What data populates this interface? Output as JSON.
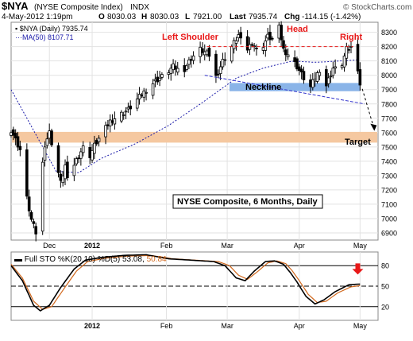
{
  "header": {
    "symbol": "$NYA",
    "name": "(NYSE Composite Index)",
    "exchange": "INDX",
    "source": "© StockCharts.com",
    "date_time": "4-May-2012 1:19pm",
    "open_label": "O",
    "open": "8030.03",
    "high_label": "H",
    "high": "8030.03",
    "low_label": "L",
    "low": "7921.00",
    "last_label": "Last",
    "last": "7935.74",
    "chg_label": "Chg",
    "chg": "-114.15 (-1.42%)"
  },
  "legend": {
    "price": "$NYA (Daily) 7935.74",
    "ma": "MA(50) 8107.71"
  },
  "annotations": {
    "left_shoulder": "Left Shoulder",
    "head": "Head",
    "right": "Right",
    "neckline": "Neckline",
    "target": "Target",
    "caption": "NYSE Composite, 6 Months, Daily"
  },
  "indicator": {
    "label": "Full STO %K(20,10) %D(5)",
    "k_value": "53.08,",
    "d_value": "50.84"
  },
  "colors": {
    "up_candle": "#ffffff",
    "down_candle": "#000000",
    "ma_line": "#1a1aa8",
    "annotation_red": "#e81818",
    "neckline_band": "#8ab4e8",
    "target_band": "#f5c8a0",
    "sto_k": "#000000",
    "sto_d": "#d2691e"
  },
  "chart_data": [
    {
      "type": "candlestick",
      "y_ticks": [
        6900,
        7000,
        7100,
        7200,
        7300,
        7400,
        7500,
        7600,
        7700,
        7800,
        7900,
        8000,
        8100,
        8200,
        8300
      ],
      "ylim": [
        6850,
        8370
      ],
      "x_labels": [
        "Dec",
        "2012",
        "Feb",
        "Mar",
        "Apr",
        "May"
      ],
      "x_label_days": [
        17,
        36,
        69,
        96,
        128,
        155
      ],
      "xlim": [
        0,
        163
      ],
      "last": 7935.74,
      "ma50_last": 8107.71,
      "neckline_band": [
        7900,
        7935
      ],
      "target_band": [
        7530,
        7605
      ],
      "target_label_value": 7560,
      "ohlc_anchors": [
        {
          "day": 0,
          "close": 7620
        },
        {
          "day": 4,
          "close": 7480
        },
        {
          "day": 7,
          "close": 7140
        },
        {
          "day": 9,
          "close": 6990
        },
        {
          "day": 11,
          "close": 6900
        },
        {
          "day": 13,
          "close": 7250
        },
        {
          "day": 15,
          "close": 7520
        },
        {
          "day": 17,
          "close": 7600
        },
        {
          "day": 19,
          "close": 7460
        },
        {
          "day": 22,
          "close": 7250
        },
        {
          "day": 24,
          "close": 7370
        },
        {
          "day": 26,
          "close": 7160
        },
        {
          "day": 28,
          "close": 7380
        },
        {
          "day": 31,
          "close": 7470
        },
        {
          "day": 33,
          "close": 7520
        },
        {
          "day": 35,
          "close": 7440
        },
        {
          "day": 37,
          "close": 7510
        },
        {
          "day": 40,
          "close": 7580
        },
        {
          "day": 44,
          "close": 7680
        },
        {
          "day": 48,
          "close": 7720
        },
        {
          "day": 52,
          "close": 7760
        },
        {
          "day": 56,
          "close": 7830
        },
        {
          "day": 60,
          "close": 7900
        },
        {
          "day": 64,
          "close": 7960
        },
        {
          "day": 68,
          "close": 8000
        },
        {
          "day": 72,
          "close": 8060
        },
        {
          "day": 76,
          "close": 8020
        },
        {
          "day": 80,
          "close": 8120
        },
        {
          "day": 84,
          "close": 8180
        },
        {
          "day": 88,
          "close": 8140
        },
        {
          "day": 91,
          "close": 7990
        },
        {
          "day": 94,
          "close": 8100
        },
        {
          "day": 98,
          "close": 8200
        },
        {
          "day": 101,
          "close": 8280
        },
        {
          "day": 104,
          "close": 8160
        },
        {
          "day": 107,
          "close": 8230
        },
        {
          "day": 110,
          "close": 8150
        },
        {
          "day": 114,
          "close": 8270
        },
        {
          "day": 117,
          "close": 8240
        },
        {
          "day": 119,
          "close": 8330
        },
        {
          "day": 121,
          "close": 8180
        },
        {
          "day": 124,
          "close": 8130
        },
        {
          "day": 127,
          "close": 8060
        },
        {
          "day": 130,
          "close": 7980
        },
        {
          "day": 131,
          "close": 7850
        },
        {
          "day": 134,
          "close": 7950
        },
        {
          "day": 137,
          "close": 8040
        },
        {
          "day": 140,
          "close": 7930
        },
        {
          "day": 143,
          "close": 8050
        },
        {
          "day": 146,
          "close": 8030
        },
        {
          "day": 149,
          "close": 8180
        },
        {
          "day": 152,
          "close": 8200
        },
        {
          "day": 154,
          "close": 8050
        },
        {
          "day": 155,
          "close": 7935.74
        }
      ],
      "ma50_anchors": [
        {
          "day": 0,
          "value": 7900
        },
        {
          "day": 20,
          "value": 7330
        },
        {
          "day": 30,
          "value": 7320
        },
        {
          "day": 40,
          "value": 7420
        },
        {
          "day": 55,
          "value": 7520
        },
        {
          "day": 70,
          "value": 7650
        },
        {
          "day": 85,
          "value": 7810
        },
        {
          "day": 100,
          "value": 7980
        },
        {
          "day": 112,
          "value": 8050
        },
        {
          "day": 125,
          "value": 8100
        },
        {
          "day": 135,
          "value": 8090
        },
        {
          "day": 146,
          "value": 8100
        },
        {
          "day": 155,
          "value": 8107.71
        }
      ]
    },
    {
      "type": "line",
      "y_ticks": [
        20,
        50,
        80
      ],
      "ylim": [
        0,
        100
      ],
      "x_labels": [
        "2012",
        "Feb",
        "Mar",
        "Apr",
        "May"
      ],
      "x_label_days": [
        36,
        69,
        96,
        128,
        155
      ],
      "xlim": [
        0,
        163
      ],
      "series": [
        {
          "name": "%K",
          "anchors": [
            {
              "day": 0,
              "value": 80
            },
            {
              "day": 5,
              "value": 58
            },
            {
              "day": 10,
              "value": 22
            },
            {
              "day": 13,
              "value": 14
            },
            {
              "day": 17,
              "value": 22
            },
            {
              "day": 22,
              "value": 48
            },
            {
              "day": 28,
              "value": 75
            },
            {
              "day": 33,
              "value": 88
            },
            {
              "day": 40,
              "value": 92
            },
            {
              "day": 50,
              "value": 95
            },
            {
              "day": 60,
              "value": 96
            },
            {
              "day": 70,
              "value": 90
            },
            {
              "day": 80,
              "value": 88
            },
            {
              "day": 90,
              "value": 86
            },
            {
              "day": 95,
              "value": 80
            },
            {
              "day": 100,
              "value": 62
            },
            {
              "day": 104,
              "value": 58
            },
            {
              "day": 108,
              "value": 72
            },
            {
              "day": 113,
              "value": 86
            },
            {
              "day": 117,
              "value": 87
            },
            {
              "day": 121,
              "value": 82
            },
            {
              "day": 124,
              "value": 70
            },
            {
              "day": 127,
              "value": 56
            },
            {
              "day": 131,
              "value": 35
            },
            {
              "day": 135,
              "value": 24
            },
            {
              "day": 139,
              "value": 30
            },
            {
              "day": 144,
              "value": 42
            },
            {
              "day": 150,
              "value": 52
            },
            {
              "day": 155,
              "value": 53.08
            }
          ]
        },
        {
          "name": "%D",
          "anchors": [
            {
              "day": 0,
              "value": 82
            },
            {
              "day": 5,
              "value": 62
            },
            {
              "day": 10,
              "value": 28
            },
            {
              "day": 14,
              "value": 16
            },
            {
              "day": 18,
              "value": 20
            },
            {
              "day": 23,
              "value": 44
            },
            {
              "day": 29,
              "value": 72
            },
            {
              "day": 34,
              "value": 86
            },
            {
              "day": 42,
              "value": 91
            },
            {
              "day": 52,
              "value": 94
            },
            {
              "day": 62,
              "value": 95
            },
            {
              "day": 72,
              "value": 90
            },
            {
              "day": 82,
              "value": 88
            },
            {
              "day": 92,
              "value": 86
            },
            {
              "day": 97,
              "value": 80
            },
            {
              "day": 101,
              "value": 66
            },
            {
              "day": 105,
              "value": 60
            },
            {
              "day": 109,
              "value": 70
            },
            {
              "day": 114,
              "value": 84
            },
            {
              "day": 118,
              "value": 87
            },
            {
              "day": 122,
              "value": 83
            },
            {
              "day": 125,
              "value": 72
            },
            {
              "day": 128,
              "value": 58
            },
            {
              "day": 132,
              "value": 38
            },
            {
              "day": 136,
              "value": 26
            },
            {
              "day": 140,
              "value": 28
            },
            {
              "day": 145,
              "value": 40
            },
            {
              "day": 151,
              "value": 49
            },
            {
              "day": 155,
              "value": 50.84
            }
          ]
        }
      ]
    }
  ]
}
